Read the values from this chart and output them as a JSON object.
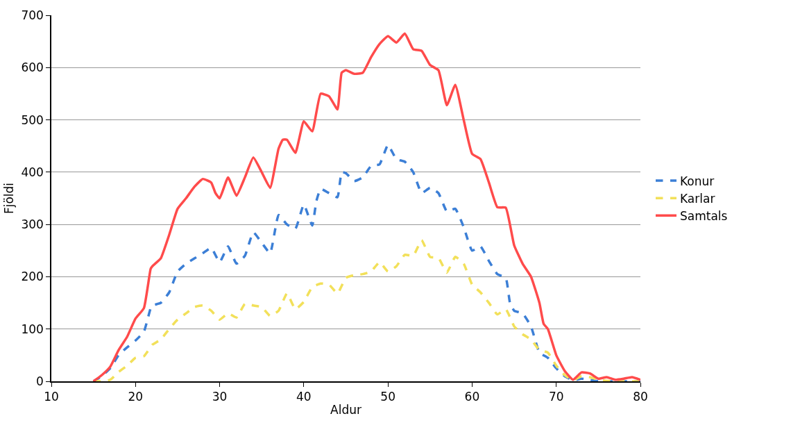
{
  "chart_data": {
    "type": "line",
    "xlabel": "Aldur",
    "ylabel": "Fjöldi",
    "xlim": [
      10,
      80
    ],
    "xticks": [
      10,
      20,
      30,
      40,
      50,
      60,
      70,
      80
    ],
    "ylim": [
      0,
      700
    ],
    "yticks": [
      0,
      100,
      200,
      300,
      400,
      500,
      600,
      700
    ],
    "grid": "y",
    "legend": "right",
    "marker": "none",
    "series": [
      {
        "name": "Konur",
        "color": "#3c7fd6",
        "line_style": "dashed",
        "x": [
          15,
          16,
          17,
          18,
          19,
          20,
          21,
          21.8,
          22,
          23,
          24,
          25,
          26,
          27,
          28,
          29,
          30,
          31,
          32,
          33,
          34,
          35,
          36,
          37,
          38,
          39,
          40,
          41,
          41.5,
          42,
          43,
          44,
          44.5,
          45,
          46,
          47,
          48,
          49,
          50,
          51,
          52,
          53,
          54,
          55,
          56,
          57,
          58,
          59,
          60,
          61,
          62,
          63,
          64,
          64.5,
          65,
          66,
          67,
          68,
          69,
          70,
          71,
          72,
          73,
          74,
          75,
          76,
          77,
          78,
          79,
          80
        ],
        "values": [
          0,
          10,
          25,
          50,
          65,
          78,
          95,
          140,
          145,
          150,
          170,
          210,
          225,
          235,
          245,
          255,
          228,
          258,
          225,
          240,
          285,
          265,
          245,
          318,
          300,
          292,
          338,
          298,
          345,
          368,
          360,
          352,
          400,
          398,
          383,
          390,
          412,
          415,
          452,
          425,
          420,
          400,
          360,
          370,
          360,
          325,
          330,
          295,
          250,
          258,
          230,
          205,
          198,
          150,
          135,
          130,
          105,
          55,
          45,
          25,
          10,
          2,
          5,
          3,
          0,
          0,
          0,
          0,
          0,
          0
        ]
      },
      {
        "name": "Karlar",
        "color": "#f2e05a",
        "line_style": "dashed",
        "x": [
          15,
          16,
          17,
          18,
          19,
          20,
          21,
          22,
          23,
          24,
          25,
          26,
          27,
          28,
          29,
          30,
          31,
          32,
          33,
          34,
          35,
          36,
          37,
          38,
          39,
          40,
          41,
          42,
          43,
          44,
          45,
          46,
          47,
          48,
          49,
          50,
          51,
          52,
          53,
          54,
          55,
          56,
          57,
          58,
          59,
          60,
          61,
          62,
          63,
          64,
          65,
          66,
          67,
          68,
          69,
          70,
          71,
          72,
          73,
          74,
          75,
          76,
          77,
          78,
          79,
          80
        ],
        "values": [
          0,
          0,
          3,
          18,
          30,
          45,
          48,
          70,
          80,
          100,
          118,
          130,
          142,
          145,
          135,
          118,
          130,
          122,
          148,
          145,
          142,
          125,
          135,
          168,
          138,
          152,
          180,
          187,
          185,
          168,
          198,
          203,
          205,
          210,
          228,
          210,
          220,
          242,
          240,
          270,
          238,
          236,
          208,
          238,
          225,
          185,
          170,
          150,
          128,
          138,
          105,
          90,
          80,
          60,
          55,
          30,
          12,
          2,
          10,
          8,
          3,
          1,
          0,
          0,
          0,
          0
        ]
      },
      {
        "name": "Samtals",
        "color": "#ff4b4b",
        "line_style": "solid",
        "x": [
          15,
          16,
          17,
          18,
          19,
          20,
          21,
          21.8,
          22,
          23,
          24,
          25,
          26,
          27,
          28,
          29,
          29.5,
          30,
          31,
          32,
          33,
          34,
          35,
          36,
          37,
          37.5,
          38,
          39,
          40,
          41,
          42,
          43,
          44,
          44.5,
          45,
          46,
          47,
          48,
          49,
          50,
          51,
          52,
          53,
          54,
          55,
          56,
          57,
          58,
          59,
          60,
          61,
          62,
          63,
          64,
          65,
          66,
          67,
          68,
          68.5,
          69,
          70,
          71,
          72,
          73,
          74,
          75,
          76,
          77,
          78,
          79,
          80
        ],
        "values": [
          0,
          12,
          28,
          60,
          85,
          120,
          140,
          215,
          220,
          235,
          280,
          330,
          350,
          372,
          387,
          380,
          360,
          350,
          390,
          355,
          390,
          428,
          400,
          370,
          445,
          462,
          462,
          437,
          497,
          478,
          550,
          545,
          520,
          590,
          595,
          588,
          590,
          620,
          645,
          660,
          648,
          665,
          635,
          632,
          605,
          595,
          528,
          567,
          500,
          435,
          425,
          380,
          333,
          332,
          260,
          225,
          200,
          150,
          110,
          100,
          50,
          20,
          3,
          17,
          15,
          5,
          8,
          3,
          5,
          8,
          3
        ]
      }
    ]
  }
}
